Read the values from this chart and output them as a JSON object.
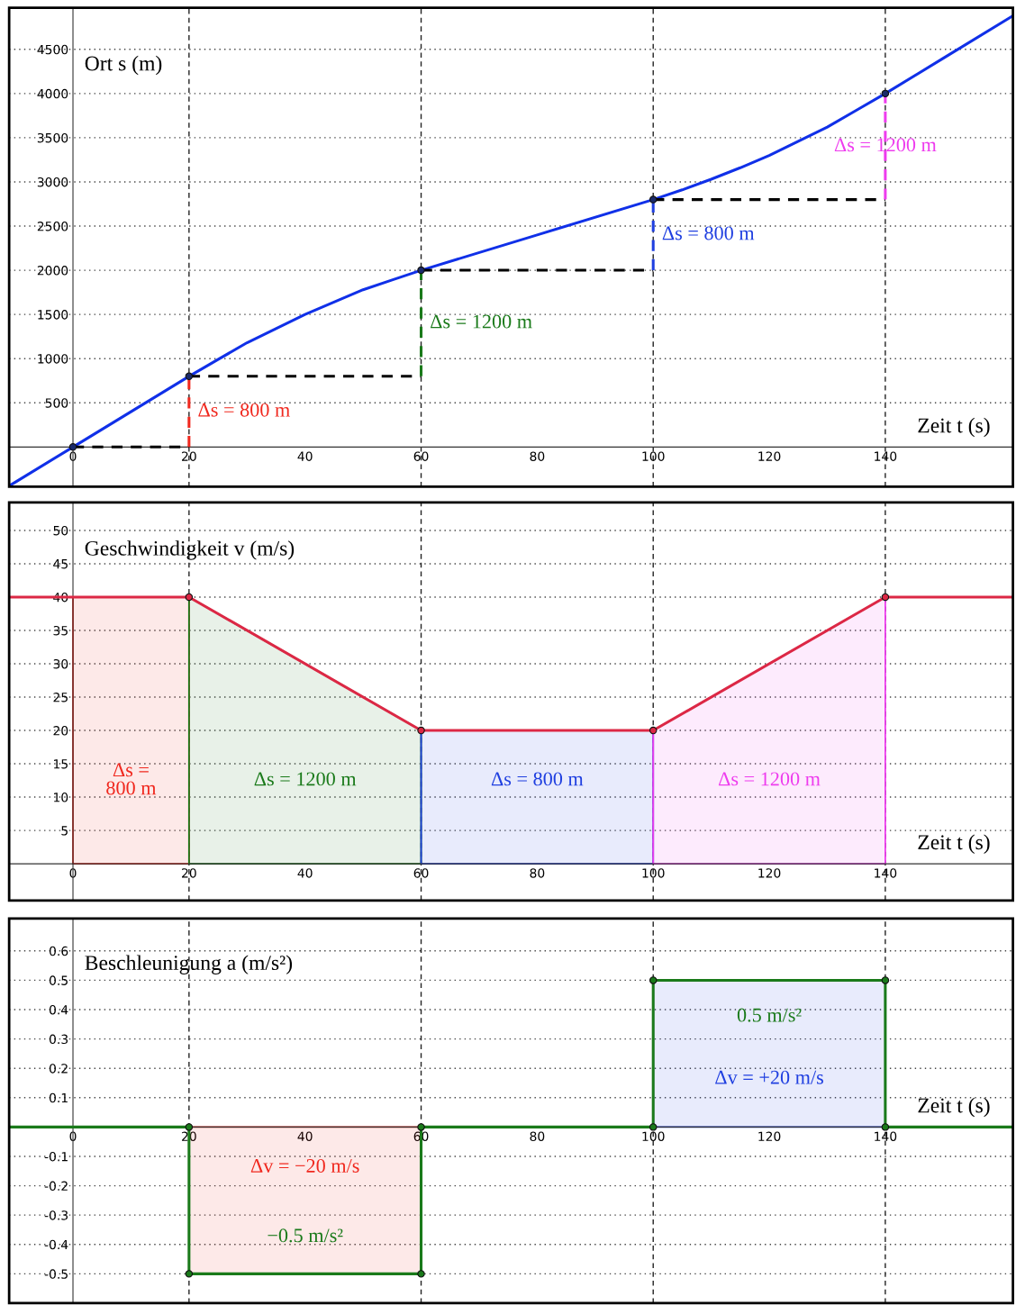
{
  "chart_data": [
    {
      "type": "line",
      "ylabel": "Ort s (m)",
      "xlabel": "Zeit t (s)",
      "xlim": [
        -11,
        162
      ],
      "ylim": [
        -450,
        4970
      ],
      "xticks": [
        0,
        20,
        40,
        60,
        80,
        100,
        120,
        140
      ],
      "yticks": [
        500,
        1000,
        1500,
        2000,
        2500,
        3000,
        3500,
        4000,
        4500
      ],
      "grid": "y",
      "ref_lines": [
        {
          "axis": "x",
          "value": 20,
          "line_style": "dashed",
          "color": "#222222"
        },
        {
          "axis": "x",
          "value": 60,
          "line_style": "dashed",
          "color": "#222222"
        },
        {
          "axis": "x",
          "value": 100,
          "line_style": "dashed",
          "color": "#222222"
        },
        {
          "axis": "x",
          "value": 140,
          "line_style": "dashed",
          "color": "#222222"
        }
      ],
      "series": [
        {
          "color": "#1030e8",
          "x": [
            -11,
            -10,
            0,
            10,
            20,
            25,
            30,
            35,
            40,
            45,
            50,
            55,
            60,
            80,
            100,
            105,
            110,
            115,
            120,
            125,
            130,
            135,
            140,
            150,
            162
          ],
          "values": [
            -440,
            -400,
            0,
            400,
            800,
            990,
            1180,
            1340,
            1500,
            1640,
            1780,
            1890,
            2000,
            2400,
            2800,
            2910,
            3030,
            3160,
            3300,
            3460,
            3620,
            3810,
            4000,
            4400,
            4880
          ]
        },
        {
          "color": "#000000",
          "line_style": "dashed",
          "x": [
            0,
            20
          ],
          "values": [
            0,
            0
          ]
        },
        {
          "color": "#000000",
          "line_style": "dashed",
          "x": [
            20,
            60
          ],
          "values": [
            800,
            800
          ]
        },
        {
          "color": "#000000",
          "line_style": "dashed",
          "x": [
            60,
            100
          ],
          "values": [
            2000,
            2000
          ]
        },
        {
          "color": "#000000",
          "line_style": "dashed",
          "x": [
            100,
            140
          ],
          "values": [
            2800,
            2800
          ]
        },
        {
          "name": "Δs = 800 m",
          "color": "#f0281e",
          "line_style": "dashed",
          "x": [
            20,
            20
          ],
          "values": [
            0,
            800
          ]
        },
        {
          "name": "Δs = 1200 m",
          "color": "#1a7a1a",
          "line_style": "dashed",
          "x": [
            60,
            60
          ],
          "values": [
            800,
            2000
          ]
        },
        {
          "name": "Δs = 800 m",
          "color": "#1f3fe0",
          "line_style": "dashed",
          "x": [
            100,
            100
          ],
          "values": [
            2000,
            2800
          ]
        },
        {
          "name": "Δs = 1200 m",
          "color": "#ee3cee",
          "line_style": "dashed",
          "x": [
            140,
            140
          ],
          "values": [
            2800,
            4000
          ]
        },
        {
          "type": "scatter",
          "color": "#1a2a6a",
          "marker": "circle",
          "x": [
            0,
            20,
            60,
            100,
            140
          ],
          "values": [
            0,
            800,
            2000,
            2800,
            4000
          ]
        }
      ]
    },
    {
      "type": "line",
      "ylabel": "Geschwindigkeit v (m/s)",
      "xlabel": "Zeit t (s)",
      "xlim": [
        -11,
        162
      ],
      "ylim": [
        -5.5,
        54.2
      ],
      "xticks": [
        0,
        20,
        40,
        60,
        80,
        100,
        120,
        140
      ],
      "yticks": [
        5,
        10,
        15,
        20,
        25,
        30,
        35,
        40,
        45,
        50
      ],
      "grid": "y",
      "ref_lines": [
        {
          "axis": "x",
          "value": 20,
          "line_style": "dashed",
          "color": "#222222"
        },
        {
          "axis": "x",
          "value": 60,
          "line_style": "dashed",
          "color": "#222222"
        },
        {
          "axis": "x",
          "value": 100,
          "line_style": "dashed",
          "color": "#222222"
        },
        {
          "axis": "x",
          "value": 140,
          "line_style": "dashed",
          "color": "#222222"
        }
      ],
      "series": [
        {
          "type": "area",
          "name": "Δs =\n800 m",
          "color": "#f0281e",
          "x": [
            0,
            20
          ],
          "values": [
            40,
            40
          ]
        },
        {
          "type": "area",
          "name": "Δs = 1200 m",
          "color": "#1a7a1a",
          "x": [
            20,
            60
          ],
          "values": [
            40,
            20
          ]
        },
        {
          "type": "area",
          "name": "Δs = 800 m",
          "color": "#1f3fe0",
          "x": [
            60,
            100
          ],
          "values": [
            20,
            20
          ]
        },
        {
          "type": "area",
          "name": "Δs = 1200 m",
          "color": "#ee3cee",
          "x": [
            100,
            140
          ],
          "values": [
            20,
            40
          ]
        },
        {
          "color": "#dc2845",
          "x": [
            -11,
            20,
            60,
            100,
            140,
            162
          ],
          "values": [
            40,
            40,
            20,
            20,
            40,
            40
          ]
        },
        {
          "type": "scatter",
          "color": "#dc2845",
          "marker": "circle",
          "x": [
            20,
            60,
            100,
            140
          ],
          "values": [
            40,
            20,
            20,
            40
          ]
        }
      ]
    },
    {
      "type": "line",
      "ylabel": "Beschleunigung a (m/s²)",
      "xlabel": "Zeit t (s)",
      "xlim": [
        -11,
        162
      ],
      "ylim": [
        -0.6,
        0.71
      ],
      "xticks": [
        0,
        20,
        40,
        60,
        80,
        100,
        120,
        140
      ],
      "yticks": [
        -0.5,
        -0.4,
        -0.3,
        -0.2,
        -0.1,
        0.1,
        0.2,
        0.3,
        0.4,
        0.5,
        0.6
      ],
      "grid": "y",
      "ref_lines": [
        {
          "axis": "x",
          "value": 20,
          "line_style": "dashed",
          "color": "#222222"
        },
        {
          "axis": "x",
          "value": 60,
          "line_style": "dashed",
          "color": "#222222"
        },
        {
          "axis": "x",
          "value": 100,
          "line_style": "dashed",
          "color": "#222222"
        },
        {
          "axis": "x",
          "value": 140,
          "line_style": "dashed",
          "color": "#222222"
        }
      ],
      "series": [
        {
          "type": "area",
          "name": "Δv = −20 m/s",
          "color": "#f0281e",
          "x": [
            20,
            60
          ],
          "values": [
            -0.5,
            -0.5
          ]
        },
        {
          "type": "area",
          "name": "Δv = +20 m/s",
          "color": "#1f3fe0",
          "x": [
            100,
            140
          ],
          "values": [
            0.5,
            0.5
          ]
        },
        {
          "color": "#1a7a1a",
          "x": [
            -11,
            20,
            20,
            40,
            60,
            60,
            100,
            100,
            120,
            140,
            140,
            162
          ],
          "values": [
            0,
            0,
            -0.5,
            -0.5,
            -0.5,
            0,
            0,
            0.5,
            0.5,
            0.5,
            0,
            0
          ],
          "value_labels": [
            null,
            null,
            null,
            "−0.5 m/s²",
            null,
            null,
            null,
            null,
            "0.5 m/s²",
            null,
            null,
            null
          ]
        },
        {
          "type": "scatter",
          "color": "#1a7a1a",
          "marker": "circle",
          "x": [
            20,
            20,
            60,
            60,
            100,
            100,
            140,
            140
          ],
          "values": [
            0,
            -0.5,
            -0.5,
            0,
            0,
            0.5,
            0.5,
            0
          ]
        }
      ]
    }
  ]
}
